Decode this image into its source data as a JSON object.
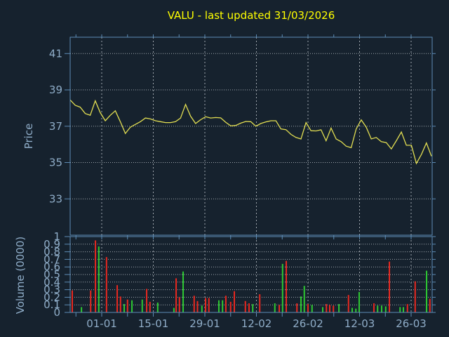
{
  "title": "VALU - last updated 31/03/2026",
  "colors": {
    "background": "#16222e",
    "axis": "#5d8cb5",
    "label": "#8fadc8",
    "title": "#ffff00",
    "grid": "#b8bec4",
    "price_line": "#e2de52",
    "volume_up": "#2ec832",
    "volume_down": "#e82820"
  },
  "chart_data": [
    {
      "type": "line",
      "name": "price-panel",
      "title": "VALU - last updated 31/03/2026",
      "ylabel": "Price",
      "ylim": [
        31,
        41.9
      ],
      "yticks": [
        33,
        35,
        37,
        39,
        41
      ],
      "xtick_labels": [
        "01-01",
        "15-01",
        "29-01",
        "12-02",
        "26-02",
        "12-03",
        "26-03"
      ],
      "xtick_days": [
        0,
        14,
        28,
        42,
        56,
        70,
        84
      ],
      "xlim_days": [
        -8.6,
        89.5
      ],
      "minor_tick_step_days": 7,
      "grid": true,
      "series": [
        {
          "name": "VALU close price",
          "values": [
            38.45,
            38.15,
            38.05,
            37.7,
            37.6,
            38.4,
            37.75,
            37.3,
            37.6,
            37.85,
            37.25,
            36.6,
            36.95,
            37.1,
            37.25,
            37.45,
            37.4,
            37.3,
            37.25,
            37.2,
            37.2,
            37.25,
            37.45,
            38.2,
            37.55,
            37.15,
            37.36,
            37.52,
            37.45,
            37.48,
            37.46,
            37.22,
            37.02,
            37.04,
            37.17,
            37.26,
            37.25,
            37.0,
            37.15,
            37.24,
            37.3,
            37.3,
            36.85,
            36.81,
            36.55,
            36.38,
            36.3,
            37.2,
            36.75,
            36.74,
            36.8,
            36.2,
            36.9,
            36.3,
            36.15,
            35.9,
            35.82,
            36.85,
            37.35,
            36.95,
            36.3,
            36.38,
            36.15,
            36.1,
            35.75,
            36.2,
            36.68,
            35.95,
            35.95,
            34.95,
            35.45,
            36.08,
            35.35
          ]
        }
      ]
    },
    {
      "type": "bar",
      "name": "volume-panel",
      "ylabel": "Volume (0000)",
      "ylim": [
        0,
        1
      ],
      "ytick_labels": [
        "0",
        "0.1",
        "0.2",
        "0.3",
        "0.4",
        "0.5",
        "0.6",
        "0.7",
        "0.8",
        "0.9",
        "1"
      ],
      "grid": true,
      "bars_format": "[day_offset_from_01-01, volume_0000, up_or_down]",
      "bars": [
        [
          -8,
          0.29,
          "down"
        ],
        [
          -5.5,
          0.07,
          "up"
        ],
        [
          -3,
          0.29,
          "down"
        ],
        [
          -1.7,
          0.95,
          "down"
        ],
        [
          -0.8,
          0.87,
          "up"
        ],
        [
          1.3,
          0.73,
          "down"
        ],
        [
          4.2,
          0.36,
          "down"
        ],
        [
          5.1,
          0.21,
          "down"
        ],
        [
          6.1,
          0.11,
          "up"
        ],
        [
          7,
          0.17,
          "down"
        ],
        [
          8.2,
          0.16,
          "up"
        ],
        [
          11,
          0.17,
          "up"
        ],
        [
          12.2,
          0.31,
          "down"
        ],
        [
          13.1,
          0.14,
          "down"
        ],
        [
          15.2,
          0.13,
          "up"
        ],
        [
          19.6,
          0.06,
          "up"
        ],
        [
          20.2,
          0.45,
          "down"
        ],
        [
          21.1,
          0.2,
          "down"
        ],
        [
          22.1,
          0.54,
          "up"
        ],
        [
          25.1,
          0.22,
          "down"
        ],
        [
          26,
          0.15,
          "down"
        ],
        [
          27.2,
          0.09,
          "up"
        ],
        [
          28.2,
          0.19,
          "down"
        ],
        [
          29.1,
          0.19,
          "down"
        ],
        [
          31.8,
          0.16,
          "up"
        ],
        [
          32.8,
          0.16,
          "up"
        ],
        [
          33.7,
          0.22,
          "down"
        ],
        [
          35,
          0.14,
          "down"
        ],
        [
          36,
          0.28,
          "down"
        ],
        [
          39,
          0.15,
          "down"
        ],
        [
          40,
          0.12,
          "down"
        ],
        [
          41,
          0.11,
          "up"
        ],
        [
          42.9,
          0.24,
          "down"
        ],
        [
          47,
          0.12,
          "up"
        ],
        [
          48.2,
          0.1,
          "down"
        ],
        [
          49.1,
          0.64,
          "up"
        ],
        [
          50.1,
          0.68,
          "down"
        ],
        [
          53,
          0.12,
          "down"
        ],
        [
          54.1,
          0.21,
          "up"
        ],
        [
          55,
          0.35,
          "up"
        ],
        [
          56,
          0.11,
          "down"
        ],
        [
          57.1,
          0.1,
          "up"
        ],
        [
          60,
          0.07,
          "up"
        ],
        [
          61,
          0.11,
          "down"
        ],
        [
          61.9,
          0.1,
          "down"
        ],
        [
          62.9,
          0.09,
          "down"
        ],
        [
          64.4,
          0.11,
          "up"
        ],
        [
          67,
          0.23,
          "down"
        ],
        [
          68,
          0.06,
          "up"
        ],
        [
          69,
          0.05,
          "up"
        ],
        [
          69.9,
          0.27,
          "up"
        ],
        [
          73.9,
          0.12,
          "down"
        ],
        [
          74.9,
          0.09,
          "up"
        ],
        [
          76,
          0.09,
          "up"
        ],
        [
          77.1,
          0.08,
          "up"
        ],
        [
          78.1,
          0.67,
          "down"
        ],
        [
          81,
          0.07,
          "up"
        ],
        [
          81.9,
          0.07,
          "up"
        ],
        [
          83,
          0.11,
          "down"
        ],
        [
          85.1,
          0.41,
          "down"
        ],
        [
          88.2,
          0.55,
          "up"
        ],
        [
          89.1,
          0.18,
          "down"
        ]
      ]
    }
  ]
}
